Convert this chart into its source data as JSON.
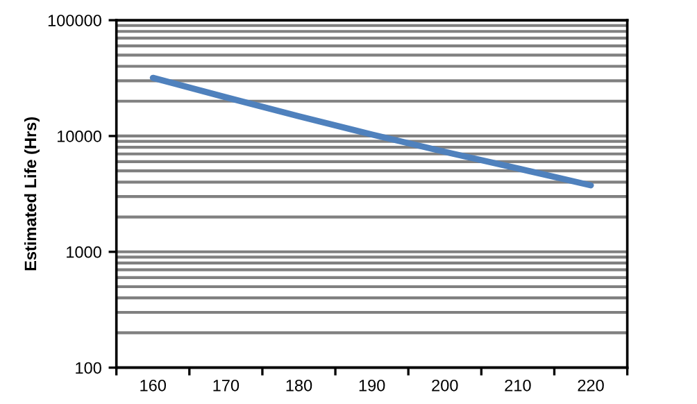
{
  "chart_data": {
    "type": "line",
    "ylabel": "Estimated Life (Hrs)",
    "categories": [
      "160",
      "170",
      "180",
      "190",
      "200",
      "210",
      "220"
    ],
    "series": [
      {
        "color": "#4f81bd",
        "values": [
          31800,
          21600,
          14800,
          10300,
          7300,
          5250,
          3750
        ]
      }
    ],
    "log": "y",
    "ylim": [
      100,
      100000
    ],
    "yticks": [
      100,
      {
        "value": 200,
        "label": null
      },
      {
        "value": 300,
        "label": null
      },
      {
        "value": 400,
        "label": null
      },
      {
        "value": 500,
        "label": null
      },
      {
        "value": 600,
        "label": null
      },
      {
        "value": 700,
        "label": null
      },
      {
        "value": 800,
        "label": null
      },
      {
        "value": 900,
        "label": null
      },
      1000,
      {
        "value": 2000,
        "label": null
      },
      {
        "value": 3000,
        "label": null
      },
      {
        "value": 4000,
        "label": null
      },
      {
        "value": 5000,
        "label": null
      },
      {
        "value": 6000,
        "label": null
      },
      {
        "value": 7000,
        "label": null
      },
      {
        "value": 8000,
        "label": null
      },
      {
        "value": 9000,
        "label": null
      },
      10000,
      {
        "value": 20000,
        "label": null
      },
      {
        "value": 30000,
        "label": null
      },
      {
        "value": 40000,
        "label": null
      },
      {
        "value": 50000,
        "label": null
      },
      {
        "value": 60000,
        "label": null
      },
      {
        "value": 70000,
        "label": null
      },
      {
        "value": 80000,
        "label": null
      },
      {
        "value": 90000,
        "label": null
      },
      100000
    ],
    "grid": "y",
    "legend": false,
    "marker": "none",
    "line_style": "solid"
  }
}
